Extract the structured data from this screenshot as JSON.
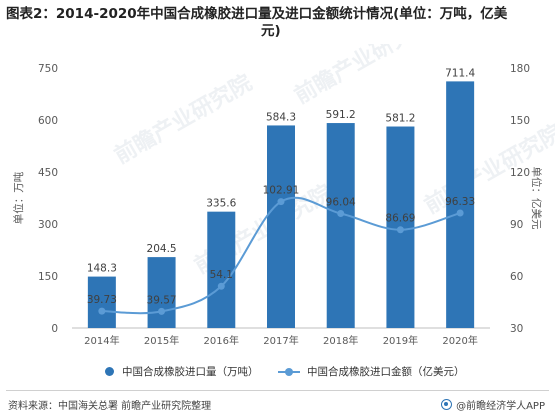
{
  "title_line1": "图表2：2014-2020年中国合成橡胶进口量及进口金额统计情况(单位：万吨，亿美",
  "title_line2": "元)",
  "chart_data": {
    "type": "bar",
    "categories": [
      "2014年",
      "2015年",
      "2016年",
      "2017年",
      "2018年",
      "2019年",
      "2020年"
    ],
    "series": [
      {
        "name": "中国合成橡胶进口量（万吨）",
        "type": "bar",
        "axis": "left",
        "values": [
          148.3,
          204.5,
          335.6,
          584.3,
          591.2,
          581.2,
          711.4
        ],
        "color": "#2e75b6"
      },
      {
        "name": "中国合成橡胶进口金额（亿美元）",
        "type": "line",
        "axis": "right",
        "values": [
          39.73,
          39.57,
          54.1,
          102.91,
          96.04,
          86.69,
          96.33
        ],
        "color": "#5b9bd5"
      }
    ],
    "ylabel": "单位：万吨",
    "y2label": "单位：亿美元",
    "ylim": [
      0,
      750
    ],
    "yticks": [
      0,
      150,
      300,
      450,
      600,
      750
    ],
    "y2lim": [
      30,
      180
    ],
    "y2ticks": [
      30,
      60,
      90,
      120,
      150,
      180
    ],
    "grid": false,
    "legend_position": "bottom"
  },
  "watermark_text": "前瞻产业研究院",
  "footer": {
    "source": "资料来源：中国海关总署 前瞻产业研究院整理",
    "brand": "@前瞻经济学人APP"
  }
}
